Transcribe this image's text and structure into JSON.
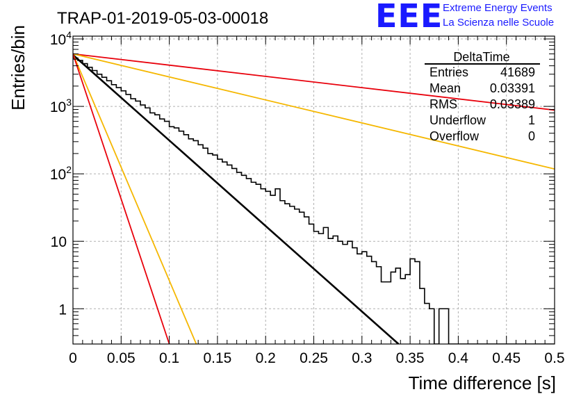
{
  "header": {
    "title": "TRAP-01-2019-05-03-00018",
    "logo_mark": "EEE",
    "logo_line1": "Extreme Energy Events",
    "logo_line2": "La Scienza nelle Scuole"
  },
  "stats_box": {
    "title": "DeltaTime",
    "rows": [
      {
        "label": "Entries",
        "value": "41689"
      },
      {
        "label": "Mean",
        "value": "0.03391"
      },
      {
        "label": "RMS",
        "value": "0.03389"
      },
      {
        "label": "Underflow",
        "value": "1"
      },
      {
        "label": "Overflow",
        "value": "0"
      }
    ]
  },
  "colors": {
    "histogram": "#000000",
    "fit": "#000000",
    "red_curves": "#e8000b",
    "orange_curves": "#f5b700",
    "grid": "#b0b0b0"
  },
  "chart_data": {
    "type": "line",
    "title": "TRAP-01-2019-05-03-00018",
    "xlabel": "Time difference [s]",
    "ylabel": "Entries/bin",
    "xlim": [
      0,
      0.5
    ],
    "ylim": [
      0.3,
      11000
    ],
    "yscale": "log",
    "grid": true,
    "x_ticks": [
      0,
      0.05,
      0.1,
      0.15,
      0.2,
      0.25,
      0.3,
      0.35,
      0.4,
      0.45,
      0.5
    ],
    "x_tick_labels": [
      "0",
      "0.05",
      "0.1",
      "0.15",
      "0.2",
      "0.25",
      "0.3",
      "0.35",
      "0.4",
      "0.45",
      "0.5"
    ],
    "y_ticks": [
      1,
      10,
      100,
      1000,
      10000
    ],
    "y_tick_labels": [
      "1",
      "10",
      "10^2",
      "10^3",
      "10^4"
    ],
    "histogram": {
      "bin_width": 0.005,
      "x_start": 0.0,
      "counts": [
        5200,
        4800,
        4300,
        3800,
        3400,
        3000,
        2700,
        2400,
        2100,
        1900,
        1700,
        1500,
        1300,
        1200,
        1050,
        950,
        800,
        750,
        650,
        600,
        500,
        480,
        430,
        380,
        330,
        310,
        270,
        240,
        200,
        190,
        165,
        150,
        135,
        120,
        105,
        95,
        85,
        75,
        70,
        60,
        55,
        48,
        60,
        40,
        36,
        33,
        30,
        27,
        23,
        18,
        14,
        13,
        16,
        11,
        12,
        10,
        9,
        10,
        8,
        6.5,
        7,
        6,
        5,
        4.2,
        2.5,
        2.5,
        3.5,
        4,
        2.8,
        3.2,
        5.5,
        5,
        2,
        1.2,
        1,
        0.3,
        1,
        1,
        0.3,
        0.3,
        0.3,
        0.3,
        0.3,
        0.3,
        0.3,
        0.3,
        0.3,
        0.3,
        0.3,
        0.3,
        0.3,
        0.3,
        0.3,
        0.3,
        0.3,
        0.3,
        0.3,
        0.3,
        0.3,
        0.3
      ]
    },
    "series": [
      {
        "name": "",
        "color": "#000000",
        "x": [
          0,
          0.338
        ],
        "y": [
          5800,
          0.3
        ]
      },
      {
        "name": "",
        "color": "#e8000b",
        "x": [
          0,
          0.5
        ],
        "y": [
          6000,
          880
        ]
      },
      {
        "name": "",
        "color": "#f5b700",
        "x": [
          0,
          0.5
        ],
        "y": [
          6000,
          118
        ]
      },
      {
        "name": "",
        "color": "#f5b700",
        "x": [
          0,
          0.128
        ],
        "y": [
          6000,
          0.3
        ]
      },
      {
        "name": "",
        "color": "#e8000b",
        "x": [
          0,
          0.1
        ],
        "y": [
          6000,
          0.3
        ]
      }
    ]
  }
}
